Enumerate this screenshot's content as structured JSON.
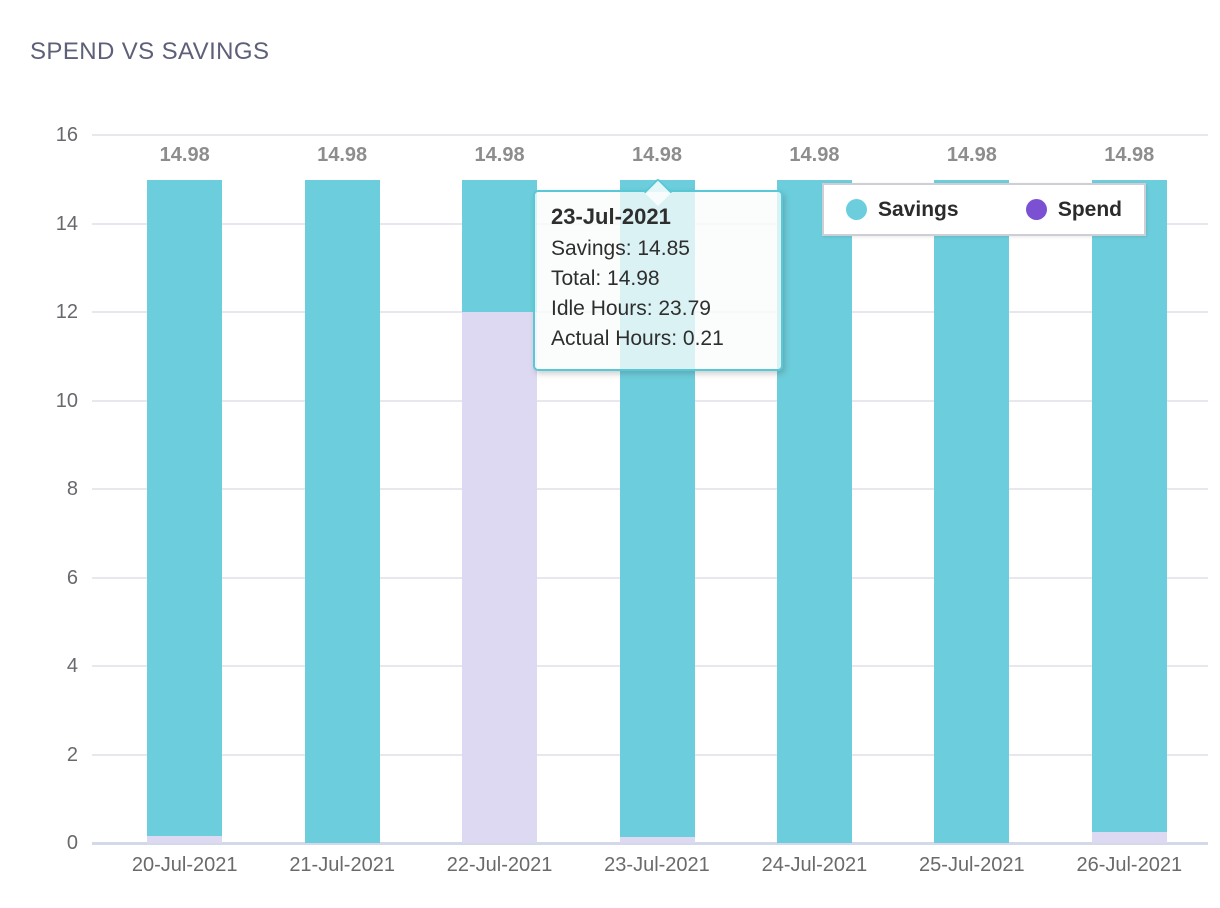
{
  "title": "SPEND VS SAVINGS",
  "chart_data": {
    "type": "bar",
    "stacked": true,
    "title": "SPEND VS SAVINGS",
    "xlabel": "",
    "ylabel": "",
    "categories": [
      "20-Jul-2021",
      "21-Jul-2021",
      "22-Jul-2021",
      "23-Jul-2021",
      "24-Jul-2021",
      "25-Jul-2021",
      "26-Jul-2021"
    ],
    "series": [
      {
        "name": "Spend",
        "bar_color": "#ded9f2",
        "legend_color": "#7b50d2",
        "values": [
          0.15,
          0,
          12.0,
          0.13,
          0,
          0,
          0.25
        ]
      },
      {
        "name": "Savings",
        "bar_color": "#6ccedc",
        "legend_color": "#6ccedc",
        "values": [
          14.83,
          14.98,
          2.98,
          14.85,
          14.98,
          14.98,
          14.73
        ]
      }
    ],
    "bar_totals": [
      14.98,
      14.98,
      14.98,
      14.98,
      14.98,
      14.98,
      14.98
    ],
    "value_labels": [
      "14.98",
      "14.98",
      "14.98",
      "14.98",
      "14.98",
      "14.98",
      "14.98"
    ],
    "ylim": [
      0,
      16
    ],
    "yticks": [
      0,
      2,
      4,
      6,
      8,
      10,
      12,
      14,
      16
    ],
    "grid": "horizontal",
    "legend_position": "top-right"
  },
  "legend": {
    "items": [
      {
        "label": "Savings",
        "color": "#6ccedc"
      },
      {
        "label": "Spend",
        "color": "#7b50d2"
      }
    ]
  },
  "tooltip": {
    "title": "23-Jul-2021",
    "lines": [
      "Savings: 14.85",
      "Total: 14.98",
      "Idle Hours: 23.79",
      "Actual Hours: 0.21"
    ],
    "anchor_category": "23-Jul-2021"
  },
  "colors": {
    "savings_bar": "#6ccedc",
    "spend_bar_fill": "#ded9f2",
    "spend_legend": "#7b50d2",
    "title_text": "#5d6078",
    "axis_text": "#67696d",
    "value_label_text": "#8d8d8d",
    "gridline": "#e7e7ed",
    "baseline": "#d3d9e8",
    "tooltip_border": "#58c7d6",
    "legend_border": "#cdced6"
  }
}
